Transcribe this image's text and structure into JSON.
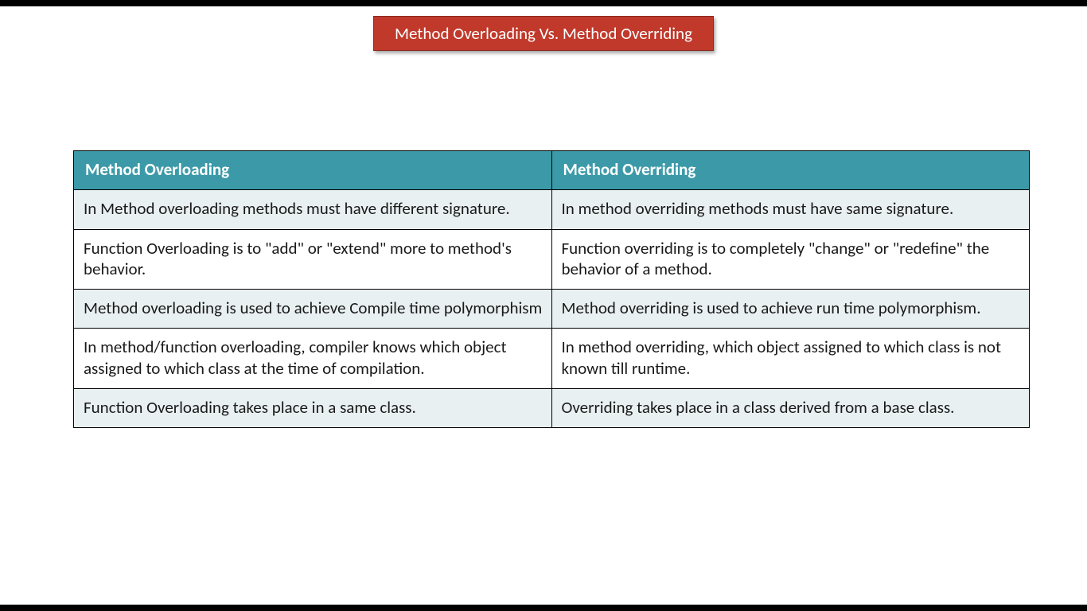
{
  "title": {
    "text": "Method Overloading Vs. Method Overriding",
    "bg_color": "#c0392b",
    "text_color": "#ffffff",
    "border_color": "#8a2a20"
  },
  "table": {
    "header_bg": "#3c9aa8",
    "header_text_color": "#ffffff",
    "row_odd_bg": "#e9f0f2",
    "row_even_bg": "#ffffff",
    "cell_text_color": "#1a1a1a",
    "columns": [
      "Method Overloading",
      "Method Overriding"
    ],
    "rows": [
      [
        "In Method overloading methods must have different signature.",
        "In method overriding methods must have same signature."
      ],
      [
        "Function Overloading is to \"add\" or \"extend\" more to method's behavior.",
        "Function overriding is to completely \"change\" or \"redefine\" the behavior of a method."
      ],
      [
        "Method overloading is used to achieve Compile time polymorphism",
        "Method overriding is used to achieve run time polymorphism."
      ],
      [
        "In method/function overloading, compiler knows which object assigned to which class at the time of compilation.",
        "In method overriding, which object assigned to which class is not known till runtime."
      ],
      [
        "Function Overloading takes place in a same class.",
        "Overriding takes place in a class derived from a base class."
      ]
    ]
  }
}
